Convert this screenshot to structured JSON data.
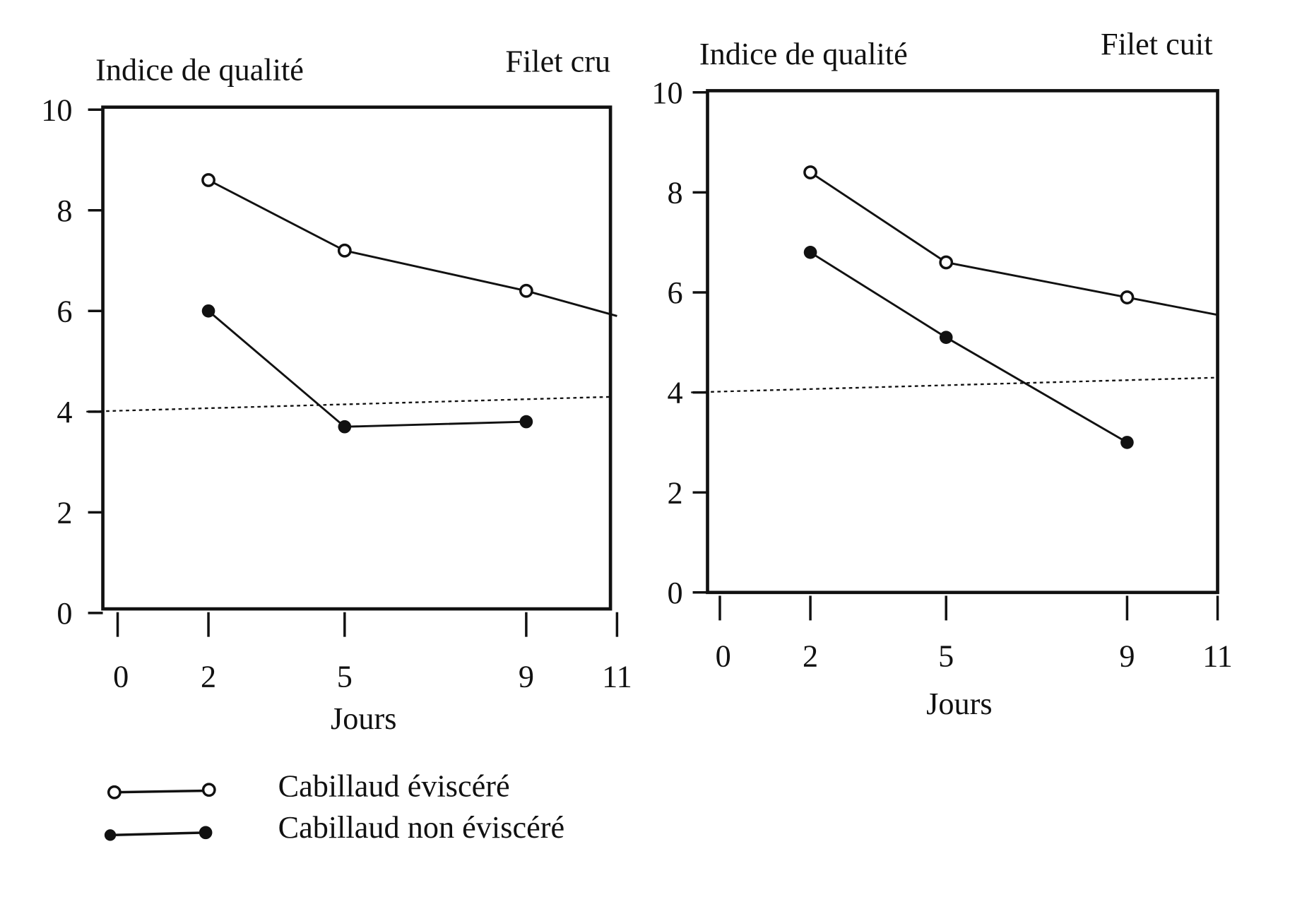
{
  "legend": {
    "items": [
      {
        "label": "Cabillaud éviscéré",
        "marker": "open-circle"
      },
      {
        "label": "Cabillaud non éviscéré",
        "marker": "filled-circle"
      }
    ]
  },
  "chart_data": [
    {
      "type": "line",
      "title": "Filet cru",
      "ylabel": "Indice de qualité",
      "xlabel": "Jours",
      "xlim": [
        0,
        11
      ],
      "ylim": [
        0,
        10
      ],
      "xticks": [
        0,
        2,
        5,
        9,
        11
      ],
      "yticks": [
        0,
        2,
        4,
        6,
        8,
        10
      ],
      "threshold": 4,
      "series": [
        {
          "name": "Cabillaud éviscéré",
          "x": [
            2,
            5,
            9,
            11
          ],
          "y": [
            8.6,
            7.2,
            6.4,
            5.9
          ],
          "markers_at": [
            2,
            5,
            9
          ]
        },
        {
          "name": "Cabillaud non éviscéré",
          "x": [
            2,
            5,
            9
          ],
          "y": [
            6.0,
            3.7,
            3.8
          ],
          "markers_at": [
            2,
            5,
            9
          ]
        }
      ]
    },
    {
      "type": "line",
      "title": "Filet cuit",
      "ylabel": "Indice de qualité",
      "xlabel": "Jours",
      "xlim": [
        0,
        11
      ],
      "ylim": [
        0,
        10
      ],
      "xticks": [
        0,
        2,
        5,
        9,
        11
      ],
      "yticks": [
        0,
        2,
        4,
        6,
        8,
        10
      ],
      "threshold": 4,
      "series": [
        {
          "name": "Cabillaud éviscéré",
          "x": [
            2,
            5,
            9,
            11
          ],
          "y": [
            8.4,
            6.6,
            5.9,
            5.55
          ],
          "markers_at": [
            2,
            5,
            9
          ]
        },
        {
          "name": "Cabillaud non éviscéré",
          "x": [
            2,
            5,
            9
          ],
          "y": [
            6.8,
            5.1,
            3.0
          ],
          "markers_at": [
            2,
            5,
            9
          ]
        }
      ]
    }
  ]
}
